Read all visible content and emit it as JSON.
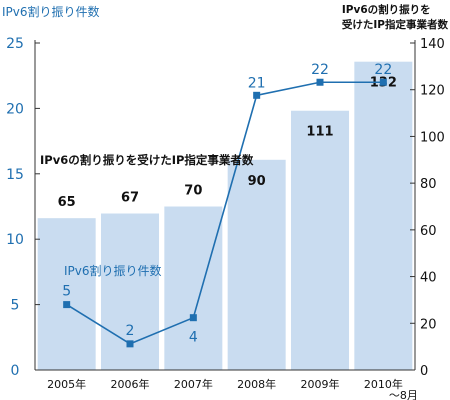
{
  "chart_data": {
    "type": "bar+line",
    "categories": [
      "2005年",
      "2006年",
      "2007年",
      "2008年",
      "2009年",
      "2010年\n〜8月"
    ],
    "series": [
      {
        "name": "IPv6の割り振りを受けたIP指定事業者数",
        "type": "bar",
        "axis": "right",
        "values": [
          65,
          67,
          70,
          90,
          111,
          132
        ]
      },
      {
        "name": "IPv6割り振り件数",
        "type": "line",
        "axis": "left",
        "values": [
          5,
          2,
          4,
          21,
          22,
          22
        ]
      }
    ],
    "left_axis": {
      "title": "IPv6割り振り件数",
      "ylim": [
        0,
        25
      ],
      "ticks": [
        0,
        5,
        10,
        15,
        20,
        25
      ]
    },
    "right_axis": {
      "title": "IPv6の割り振りを\n受けたIP指定事業者数",
      "ylim": [
        0,
        140
      ],
      "ticks": [
        0,
        20,
        40,
        60,
        80,
        100,
        120,
        140
      ]
    },
    "colors": {
      "bar": "#c9dcf0",
      "line": "#1f6fb0",
      "axis_left": "#1f6fb0",
      "axis_right": "#111111"
    },
    "grid": false
  },
  "left_title": "IPv6割り振り件数",
  "right_title": "IPv6の割り振りを\n受けたIP指定事業者数",
  "annotation_bar": "IPv6の割り振りを受けたIP指定事業者数",
  "annotation_line": "IPv6割り振り件数"
}
